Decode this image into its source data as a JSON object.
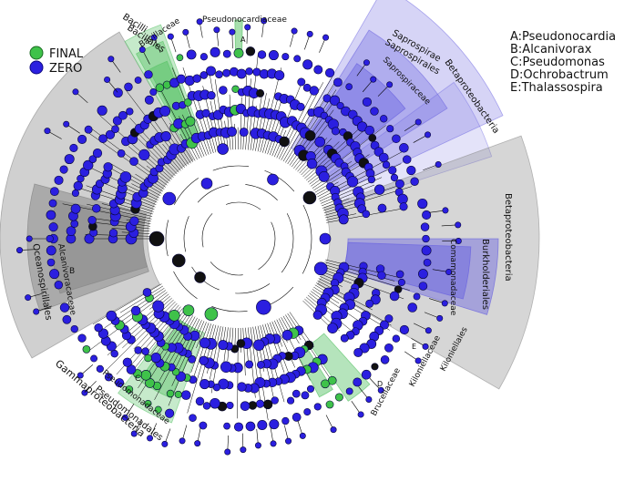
{
  "legend": {
    "items": [
      {
        "label": "FINAL",
        "color": "#3fc24a"
      },
      {
        "label": "ZERO",
        "color": "#2b1fe0"
      }
    ]
  },
  "key": {
    "lines": [
      "A:Pseudonocardia",
      "B:Alcanivorax",
      "C:Pseudomonas",
      "D:Ochrobactrum",
      "E:Thalassospira"
    ]
  },
  "clades": {
    "pseudonocardiaceae": "Pseudonocardiaceae",
    "marker_a": "A",
    "bacilli": "Bacilli",
    "bacillales": "Bacillales",
    "bacillaceae": "Bacillaceae",
    "saprospirae": "Saprospirae",
    "saprospirales": "Saprospirales",
    "saprospiraceae": "Saprospiraceae",
    "betaproteobacteria_outer": "Betaproteobacteria",
    "betaproteobacteria_big": "Betaproteobacteria",
    "comamonadaceae": "Comamonadaceae",
    "burkholderiales": "Burkholderiales",
    "oceanospirillales": "Oceanospirillales",
    "alcanivoracaceae": "Alcanivoracaceae",
    "marker_b": "B",
    "gammaproteobacteria": "Gammaproteobacteria",
    "pseudomonadaceae": "Pseudomonadaceae",
    "pseudomonadales": "Pseudomonadales",
    "marker_c": "C",
    "brucellaceae": "Brucellaceae",
    "marker_d": "D",
    "kiloniellaceae": "Kiloniellaceae",
    "kiloniellales": "Kiloniellales",
    "marker_e": "E"
  },
  "colors": {
    "zero_node": "#2b1fe0",
    "final_node": "#3fc24a",
    "dark_node": "#111111",
    "branch": "#000000",
    "blue_sector": "#6a63e0",
    "gray_sector": "#8a8a8a",
    "green_sector": "#5cc46a"
  }
}
